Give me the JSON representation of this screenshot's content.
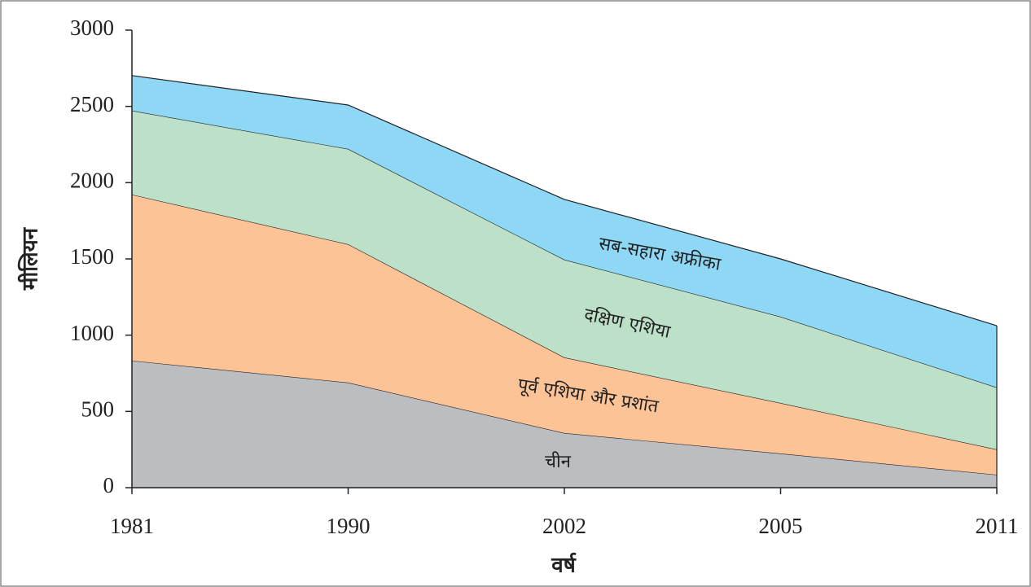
{
  "chart_data": {
    "type": "stacked-area",
    "x_label": "वर्ष",
    "y_label": "मीलियन",
    "categories": [
      "1981",
      "1990",
      "2002",
      "2005",
      "2011"
    ],
    "series": [
      {
        "name": "चीन",
        "color": "#bcbdc1",
        "values": [
          833,
          689,
          358,
          224,
          85
        ]
      },
      {
        "name": "पूर्व एशिया और प्रशांत",
        "color": "#fcc397",
        "values": [
          1089,
          907,
          496,
          331,
          166
        ]
      },
      {
        "name": "दक्षिण एशिया",
        "color": "#bde0c8",
        "values": [
          550,
          625,
          641,
          566,
          406
        ]
      },
      {
        "name": "सब-सहारा अफ्रीका",
        "color": "#8ed8f6",
        "values": [
          230,
          288,
          395,
          379,
          405
        ]
      }
    ],
    "ylim": [
      0,
      3000
    ],
    "yticks": [
      0,
      500,
      1000,
      1500,
      2000,
      2500,
      3000
    ]
  }
}
